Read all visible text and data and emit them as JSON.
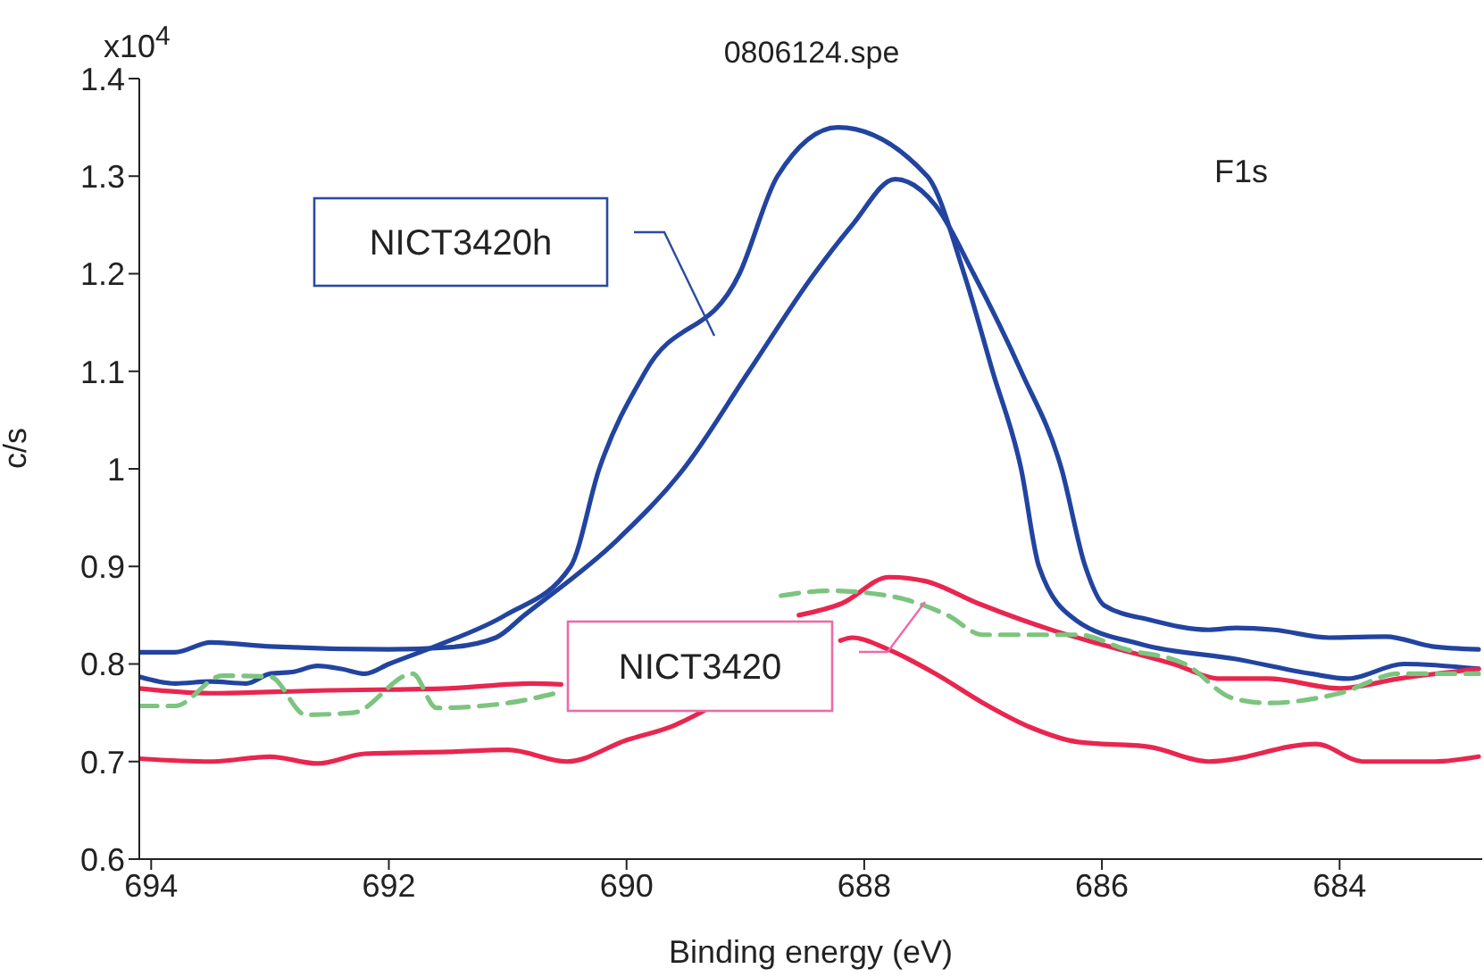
{
  "chart_data": {
    "type": "line",
    "title": "0806124.spe",
    "xlabel": "Binding energy (eV)",
    "ylabel": "c/s",
    "xlim": [
      694.1,
      682.8
    ],
    "xticks": [
      694,
      692,
      690,
      688,
      686,
      684
    ],
    "ylim": [
      0.6,
      1.4
    ],
    "yticks": [
      0.6,
      0.7,
      0.8,
      0.9,
      1,
      1.1,
      1.2,
      1.3,
      1.4
    ],
    "grid": false,
    "legend": false,
    "marker": "none",
    "line_style": "solid",
    "annotations": [
      "NICT3420h",
      "NICT3420",
      "F1s",
      "x10$^{4}$"
    ],
    "series": [
      {
        "color": "#2244a0",
        "x": [
          694.1,
          693.8,
          693.5,
          693.2,
          693.0,
          692.8,
          692.6,
          692.4,
          692.2,
          692.0,
          691.57,
          691.02,
          690.47,
          690.23,
          689.84,
          689.05,
          688.73,
          688.22,
          687.47,
          687.16,
          686.92,
          686.68,
          686.53,
          686.22,
          685.66,
          684.87,
          684.24,
          683.93,
          683.46,
          682.83
        ],
        "values": [
          0.787,
          0.78,
          0.782,
          0.78,
          0.79,
          0.792,
          0.798,
          0.795,
          0.79,
          0.8,
          0.82,
          0.85,
          0.9,
          1.0,
          1.1,
          1.2,
          1.3,
          1.35,
          1.3,
          1.2,
          1.1,
          1.0,
          0.9,
          0.845,
          0.82,
          0.805,
          0.79,
          0.785,
          0.8,
          0.795
        ]
      },
      {
        "color": "#2244a0",
        "x": [
          694.1,
          693.8,
          693.5,
          693.0,
          692.0,
          691.5,
          691.1,
          690.86,
          690.08,
          689.52,
          688.97,
          688.42,
          688.1,
          687.74,
          687.4,
          687.08,
          686.68,
          686.34,
          686.14,
          685.98,
          685.59,
          685.1,
          684.87,
          684.55,
          684.09,
          683.61,
          683.22,
          682.83
        ],
        "values": [
          0.812,
          0.812,
          0.822,
          0.818,
          0.815,
          0.817,
          0.827,
          0.85,
          0.927,
          1.0,
          1.1,
          1.2,
          1.25,
          1.297,
          1.27,
          1.2,
          1.1,
          1.0,
          0.9,
          0.86,
          0.845,
          0.835,
          0.837,
          0.835,
          0.827,
          0.828,
          0.818,
          0.815
        ]
      },
      {
        "color": "#e8264f",
        "x": [
          694.1,
          693.5,
          692.5,
          691.5,
          690.8,
          690.55,
          690.0,
          688.55,
          688.19,
          687.79,
          687.49,
          687.04,
          686.4,
          686.0,
          685.4,
          685.0,
          684.6,
          684.0,
          683.5,
          682.83
        ],
        "values": [
          0.775,
          0.77,
          0.773,
          0.775,
          0.78,
          0.779,
          null,
          0.85,
          0.862,
          0.889,
          0.885,
          0.862,
          0.834,
          0.82,
          0.8,
          0.785,
          0.785,
          0.775,
          0.785,
          0.795
        ]
      },
      {
        "color": "#e8264f",
        "x": [
          694.1,
          693.5,
          693.0,
          692.6,
          692.2,
          691.5,
          691.0,
          690.5,
          690.0,
          689.6,
          689.35,
          689.0,
          688.2,
          688.1,
          687.8,
          687.4,
          687.0,
          686.6,
          686.2,
          685.6,
          685.1,
          684.2,
          683.8,
          683.2,
          682.83
        ],
        "values": [
          0.703,
          0.7,
          0.705,
          0.698,
          0.708,
          0.71,
          0.712,
          0.7,
          0.722,
          0.737,
          0.752,
          null,
          0.824,
          0.827,
          0.815,
          0.79,
          0.76,
          0.735,
          0.72,
          0.715,
          0.7,
          0.718,
          0.7,
          0.7,
          0.705
        ]
      },
      {
        "color": "#7cc47f",
        "line_style": "dashed",
        "x": [
          694.1,
          693.8,
          693.4,
          693.0,
          692.7,
          692.3,
          691.8,
          691.6,
          691.0,
          690.6,
          689.5,
          688.7,
          688.3,
          687.8,
          687.3,
          687.0,
          686.2,
          685.8,
          685.3,
          684.9,
          684.6,
          684.0,
          683.5,
          682.83
        ],
        "values": [
          0.757,
          0.757,
          0.788,
          0.787,
          0.748,
          0.75,
          0.79,
          0.755,
          0.76,
          0.77,
          null,
          0.87,
          0.875,
          0.87,
          0.85,
          0.83,
          0.83,
          0.815,
          0.8,
          0.765,
          0.76,
          0.77,
          0.79,
          0.79
        ]
      }
    ]
  }
}
